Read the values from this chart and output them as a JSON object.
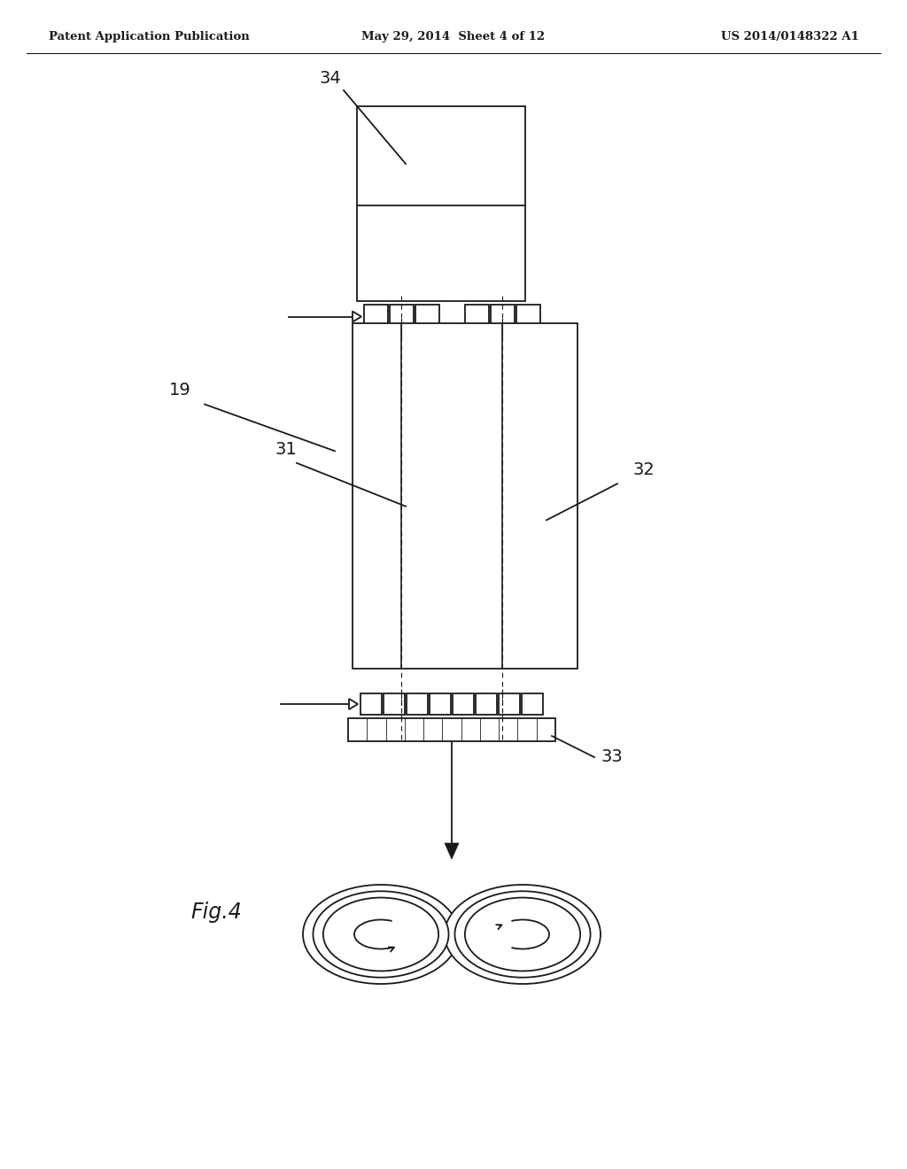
{
  "bg_color": "#ffffff",
  "line_color": "#1a1a1a",
  "header_left": "Patent Application Publication",
  "header_center": "May 29, 2014  Sheet 4 of 12",
  "header_right": "US 2014/0148322 A1",
  "fig_label": "Fig.4",
  "label_19": "19",
  "label_31": "31",
  "label_32": "32",
  "label_33": "33",
  "label_34": "34",
  "fig_width": 10.24,
  "fig_height": 13.2
}
